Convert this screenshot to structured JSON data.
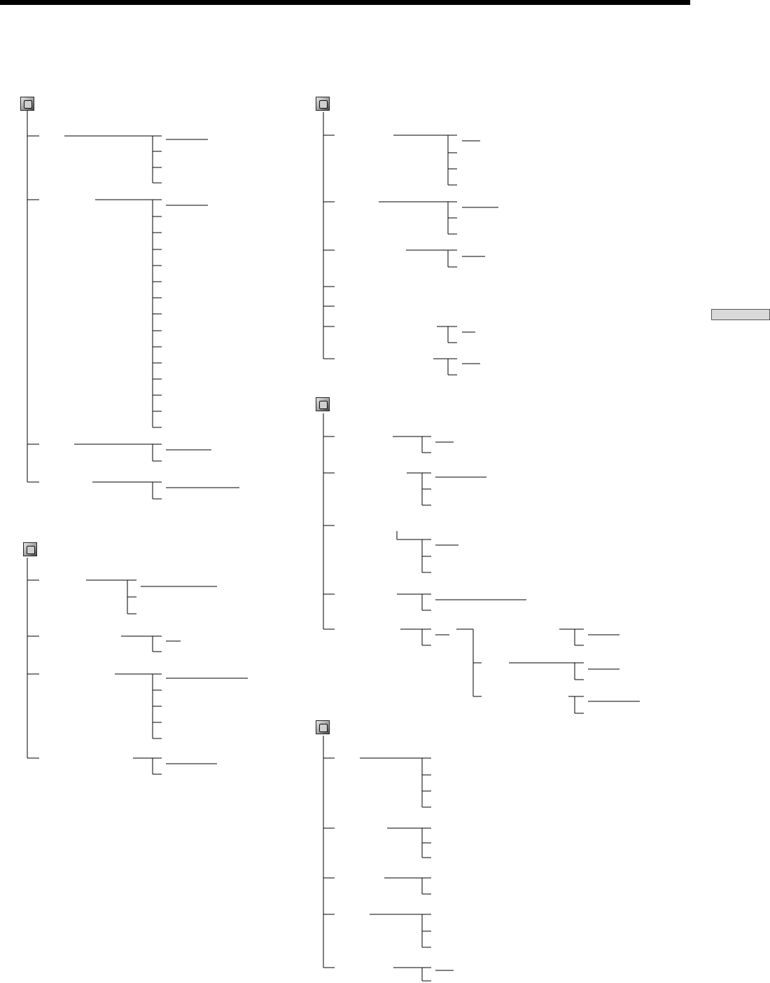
{
  "page": {
    "header_rule": "black",
    "side_tab_color": "#d9d9d9"
  },
  "menus": [
    {
      "icon": "camera-set-icon",
      "items": [
        {
          "branches": 4
        },
        {
          "branches": 15
        },
        {
          "branches": 2
        },
        {
          "branches": 2
        }
      ]
    },
    {
      "icon": "cassette-set-icon",
      "items": [
        {
          "branches": 3
        },
        {
          "branches": 2
        },
        {
          "branches": 5
        },
        {
          "branches": 2
        }
      ]
    },
    {
      "icon": "lcd-vf-set-icon",
      "items": [
        {
          "branches": 4
        },
        {
          "branches": 3
        },
        {
          "branches": 2
        },
        {
          "branches": 0
        },
        {
          "branches": 0
        },
        {
          "branches": 2
        },
        {
          "branches": 2
        }
      ]
    },
    {
      "icon": "memory-set-icon",
      "items": [
        {
          "branches": 2
        },
        {
          "branches": 3
        },
        {
          "branches": 3
        },
        {
          "branches": 2
        },
        {
          "branches": 3
        }
      ]
    },
    {
      "icon": "etc-set-icon",
      "items": [
        {
          "branches": 4
        },
        {
          "branches": 3
        },
        {
          "branches": 2
        },
        {
          "branches": 3
        },
        {
          "branches": 2
        }
      ]
    }
  ]
}
